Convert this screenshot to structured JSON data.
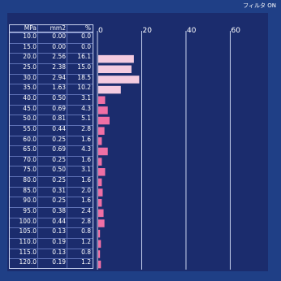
{
  "filter_status": "フィルタ ON",
  "table": {
    "headers": [
      "MPa",
      "mm2",
      "%"
    ],
    "rows": [
      [
        "10.0",
        "0.00",
        "0.0"
      ],
      [
        "15.0",
        "0.00",
        "0.0"
      ],
      [
        "20.0",
        "2.56",
        "16.1"
      ],
      [
        "25.0",
        "2.38",
        "15.0"
      ],
      [
        "30.0",
        "2.94",
        "18.5"
      ],
      [
        "35.0",
        "1.63",
        "10.2"
      ],
      [
        "40.0",
        "0.50",
        "3.1"
      ],
      [
        "45.0",
        "0.69",
        "4.3"
      ],
      [
        "50.0",
        "0.81",
        "5.1"
      ],
      [
        "55.0",
        "0.44",
        "2.8"
      ],
      [
        "60.0",
        "0.25",
        "1.6"
      ],
      [
        "65.0",
        "0.69",
        "4.3"
      ],
      [
        "70.0",
        "0.25",
        "1.6"
      ],
      [
        "75.0",
        "0.50",
        "3.1"
      ],
      [
        "80.0",
        "0.25",
        "1.6"
      ],
      [
        "85.0",
        "0.31",
        "2.0"
      ],
      [
        "90.0",
        "0.25",
        "1.6"
      ],
      [
        "95.0",
        "0.38",
        "2.4"
      ],
      [
        "100.0",
        "0.44",
        "2.8"
      ],
      [
        "105.0",
        "0.13",
        "0.8"
      ],
      [
        "110.0",
        "0.19",
        "1.2"
      ],
      [
        "115.0",
        "0.13",
        "0.8"
      ],
      [
        "120.0",
        "0.19",
        "1.2"
      ]
    ]
  },
  "chart_data": {
    "type": "bar",
    "orientation": "horizontal",
    "categories": [
      "10.0",
      "15.0",
      "20.0",
      "25.0",
      "30.0",
      "35.0",
      "40.0",
      "45.0",
      "50.0",
      "55.0",
      "60.0",
      "65.0",
      "70.0",
      "75.0",
      "80.0",
      "85.0",
      "90.0",
      "95.0",
      "100.0",
      "105.0",
      "110.0",
      "115.0",
      "120.0"
    ],
    "values": [
      0.0,
      0.0,
      16.1,
      15.0,
      18.5,
      10.2,
      3.1,
      4.3,
      5.1,
      2.8,
      1.6,
      4.3,
      1.6,
      3.1,
      1.6,
      2.0,
      1.6,
      2.4,
      2.8,
      0.8,
      1.2,
      0.8,
      1.2
    ],
    "xlim": [
      0,
      70
    ],
    "x_ticks": [
      "0",
      "20",
      "40",
      "60"
    ],
    "grid": true,
    "colors": {
      "bar_high": "#f4cbe0",
      "bar_low": "#f06fa5",
      "grid": "#c9d3f0",
      "background": "#1b2c6d"
    }
  }
}
